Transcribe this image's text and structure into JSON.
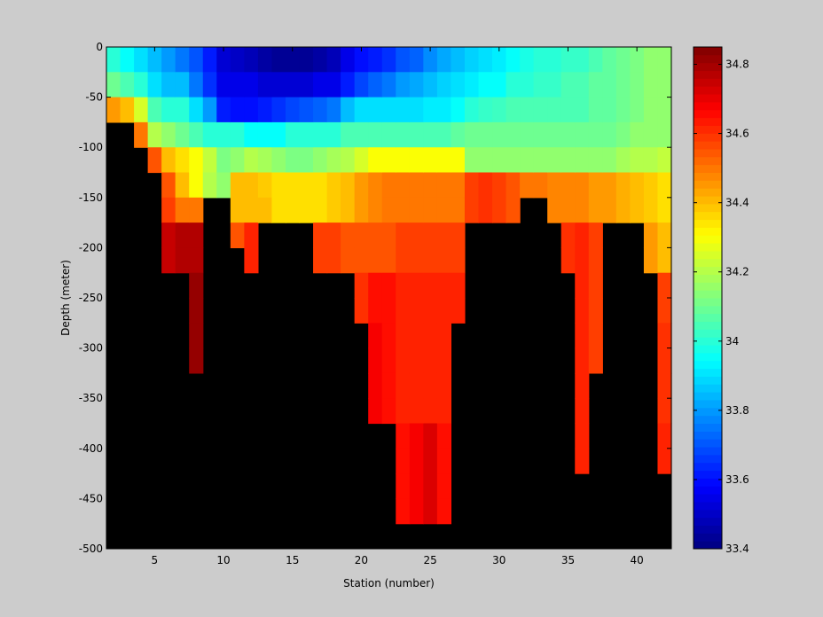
{
  "chart_data": {
    "type": "heatmap",
    "title": "",
    "xlabel": "Station (number)",
    "ylabel": "Depth (meter)",
    "xlim": [
      1.5,
      42.5
    ],
    "ylim": [
      -500,
      0
    ],
    "xticks": [
      5,
      10,
      15,
      20,
      25,
      30,
      35,
      40
    ],
    "yticks": [
      0,
      -50,
      -100,
      -150,
      -200,
      -250,
      -300,
      -350,
      -400,
      -450,
      -500
    ],
    "background_color": "#000000",
    "colorbar": {
      "range": [
        33.4,
        34.85
      ],
      "ticks": [
        33.4,
        33.6,
        33.8,
        34,
        34.2,
        34.4,
        34.6,
        34.8
      ],
      "colormap": "jet"
    },
    "depth_levels": [
      0,
      -25,
      -50,
      -75,
      -100,
      -125,
      -150,
      -175,
      -200,
      -225,
      -250,
      -275,
      -300,
      -325,
      -350,
      -375,
      -400,
      -425,
      -450,
      -475,
      -500
    ],
    "stations": [
      2,
      3,
      4,
      5,
      6,
      7,
      8,
      9,
      10,
      11,
      12,
      13,
      14,
      15,
      16,
      17,
      18,
      19,
      20,
      21,
      22,
      23,
      24,
      25,
      26,
      27,
      28,
      29,
      30,
      31,
      32,
      33,
      34,
      35,
      36,
      37,
      38,
      39,
      40,
      41,
      42
    ],
    "values": [
      [
        34.0,
        34.1,
        34.45,
        null,
        null,
        null,
        null,
        null,
        null,
        null,
        null,
        null,
        null,
        null,
        null,
        null,
        null,
        null,
        null,
        null
      ],
      [
        33.95,
        34.05,
        34.4,
        null,
        null,
        null,
        null,
        null,
        null,
        null,
        null,
        null,
        null,
        null,
        null,
        null,
        null,
        null,
        null,
        null
      ],
      [
        33.9,
        34.0,
        34.25,
        34.5,
        null,
        null,
        null,
        null,
        null,
        null,
        null,
        null,
        null,
        null,
        null,
        null,
        null,
        null,
        null,
        null
      ],
      [
        33.85,
        33.9,
        34.05,
        34.2,
        34.55,
        null,
        null,
        null,
        null,
        null,
        null,
        null,
        null,
        null,
        null,
        null,
        null,
        null,
        null,
        null
      ],
      [
        33.8,
        33.85,
        34.0,
        34.15,
        34.4,
        34.55,
        34.58,
        34.75,
        34.75,
        null,
        null,
        null,
        null,
        null,
        null,
        null,
        null,
        null,
        null,
        null
      ],
      [
        33.75,
        33.85,
        34.0,
        34.1,
        34.35,
        34.4,
        34.5,
        34.78,
        34.78,
        null,
        null,
        null,
        null,
        null,
        null,
        null,
        null,
        null,
        null,
        null
      ],
      [
        33.7,
        33.75,
        33.9,
        34.05,
        34.3,
        34.3,
        34.5,
        34.78,
        34.78,
        34.82,
        34.82,
        34.82,
        34.82,
        null,
        null,
        null,
        null,
        null,
        null,
        null
      ],
      [
        33.62,
        33.65,
        33.8,
        34.0,
        34.22,
        34.2,
        null,
        null,
        null,
        null,
        null,
        null,
        null,
        null,
        null,
        null,
        null,
        null,
        null,
        null
      ],
      [
        33.52,
        33.55,
        33.62,
        34.0,
        34.12,
        34.15,
        null,
        null,
        null,
        null,
        null,
        null,
        null,
        null,
        null,
        null,
        null,
        null,
        null,
        null
      ],
      [
        33.5,
        33.55,
        33.6,
        34.0,
        34.15,
        34.4,
        34.4,
        34.55,
        null,
        null,
        null,
        null,
        null,
        null,
        null,
        null,
        null,
        null,
        null,
        null
      ],
      [
        33.48,
        33.55,
        33.6,
        33.95,
        34.2,
        34.4,
        34.4,
        34.62,
        34.62,
        null,
        null,
        null,
        null,
        null,
        null,
        null,
        null,
        null,
        null,
        null
      ],
      [
        33.45,
        33.52,
        33.62,
        33.95,
        34.18,
        34.38,
        34.4,
        null,
        null,
        null,
        null,
        null,
        null,
        null,
        null,
        null,
        null,
        null,
        null,
        null
      ],
      [
        33.43,
        33.52,
        33.65,
        33.95,
        34.15,
        34.35,
        34.35,
        null,
        null,
        null,
        null,
        null,
        null,
        null,
        null,
        null,
        null,
        null,
        null,
        null
      ],
      [
        33.43,
        33.52,
        33.68,
        34.0,
        34.12,
        34.35,
        34.35,
        null,
        null,
        null,
        null,
        null,
        null,
        null,
        null,
        null,
        null,
        null,
        null,
        null
      ],
      [
        33.43,
        33.52,
        33.7,
        34.0,
        34.12,
        34.35,
        34.35,
        null,
        null,
        null,
        null,
        null,
        null,
        null,
        null,
        null,
        null,
        null,
        null,
        null
      ],
      [
        33.45,
        33.55,
        33.72,
        34.0,
        34.15,
        34.35,
        34.35,
        34.58,
        34.58,
        null,
        null,
        null,
        null,
        null,
        null,
        null,
        null,
        null,
        null,
        null
      ],
      [
        33.48,
        33.55,
        33.75,
        34.0,
        34.18,
        34.38,
        34.38,
        34.58,
        34.58,
        null,
        null,
        null,
        null,
        null,
        null,
        null,
        null,
        null,
        null,
        null
      ],
      [
        33.55,
        33.62,
        33.85,
        34.05,
        34.2,
        34.4,
        34.4,
        34.55,
        34.55,
        null,
        null,
        null,
        null,
        null,
        null,
        null,
        null,
        null,
        null,
        null
      ],
      [
        33.6,
        33.68,
        33.9,
        34.05,
        34.25,
        34.45,
        34.45,
        34.55,
        34.55,
        34.6,
        34.6,
        null,
        null,
        null,
        null,
        null,
        null,
        null,
        null,
        null
      ],
      [
        33.62,
        33.72,
        33.9,
        34.05,
        34.3,
        34.48,
        34.48,
        34.55,
        34.55,
        34.65,
        34.65,
        34.68,
        34.68,
        34.68,
        34.68,
        null,
        null,
        null,
        null,
        null
      ],
      [
        33.65,
        33.75,
        33.9,
        34.05,
        34.3,
        34.5,
        34.5,
        34.55,
        34.55,
        34.65,
        34.65,
        34.65,
        34.65,
        34.65,
        34.65,
        null,
        null,
        null,
        null,
        null
      ],
      [
        33.7,
        33.8,
        33.9,
        34.05,
        34.3,
        34.5,
        34.5,
        34.58,
        34.58,
        34.62,
        34.62,
        34.62,
        34.62,
        34.62,
        34.62,
        34.65,
        34.65,
        34.65,
        34.65,
        null
      ],
      [
        33.72,
        33.82,
        33.9,
        34.05,
        34.3,
        34.5,
        34.5,
        34.58,
        34.58,
        34.62,
        34.62,
        34.62,
        34.62,
        34.62,
        34.62,
        34.68,
        34.68,
        34.68,
        34.68,
        null
      ],
      [
        33.78,
        33.85,
        33.92,
        34.05,
        34.3,
        34.5,
        34.5,
        34.58,
        34.58,
        34.62,
        34.62,
        34.62,
        34.62,
        34.62,
        34.62,
        34.72,
        34.72,
        34.72,
        34.72,
        null
      ],
      [
        33.82,
        33.88,
        33.92,
        34.05,
        34.3,
        34.5,
        34.5,
        34.58,
        34.58,
        34.62,
        34.62,
        34.62,
        34.62,
        34.62,
        34.62,
        34.65,
        34.65,
        34.65,
        34.65,
        null
      ],
      [
        33.85,
        33.9,
        33.95,
        34.08,
        34.3,
        34.5,
        34.5,
        34.58,
        34.58,
        34.62,
        34.62,
        null,
        null,
        null,
        null,
        null,
        null,
        null,
        null,
        null
      ],
      [
        33.88,
        33.92,
        34.0,
        34.1,
        34.15,
        34.58,
        34.58,
        null,
        null,
        null,
        null,
        null,
        null,
        null,
        null,
        null,
        null,
        null,
        null,
        null
      ],
      [
        33.9,
        33.95,
        34.02,
        34.1,
        34.15,
        34.6,
        34.6,
        null,
        null,
        null,
        null,
        null,
        null,
        null,
        null,
        null,
        null,
        null,
        null,
        null
      ],
      [
        33.92,
        33.95,
        34.03,
        34.1,
        34.15,
        34.58,
        34.58,
        null,
        null,
        null,
        null,
        null,
        null,
        null,
        null,
        null,
        null,
        null,
        null,
        null
      ],
      [
        33.95,
        34.0,
        34.05,
        34.1,
        34.15,
        34.55,
        34.55,
        null,
        null,
        null,
        null,
        null,
        null,
        null,
        null,
        null,
        null,
        null,
        null,
        null
      ],
      [
        33.98,
        34.0,
        34.05,
        34.1,
        34.15,
        34.5,
        null,
        null,
        null,
        null,
        null,
        null,
        null,
        null,
        null,
        null,
        null,
        null,
        null,
        null
      ],
      [
        34.0,
        34.02,
        34.05,
        34.1,
        34.15,
        34.5,
        null,
        null,
        null,
        null,
        null,
        null,
        null,
        null,
        null,
        null,
        null,
        null,
        null,
        null
      ],
      [
        34.0,
        34.02,
        34.05,
        34.1,
        34.15,
        34.48,
        34.48,
        null,
        null,
        null,
        null,
        null,
        null,
        null,
        null,
        null,
        null,
        null,
        null,
        null
      ],
      [
        34.02,
        34.05,
        34.05,
        34.1,
        34.15,
        34.48,
        34.48,
        34.6,
        34.6,
        null,
        null,
        null,
        null,
        null,
        null,
        null,
        null,
        null,
        null,
        null
      ],
      [
        34.02,
        34.05,
        34.05,
        34.1,
        34.15,
        34.48,
        34.48,
        34.62,
        34.62,
        34.62,
        34.62,
        34.62,
        34.62,
        34.62,
        34.62,
        34.62,
        34.62,
        null,
        null,
        null
      ],
      [
        34.05,
        34.08,
        34.08,
        34.1,
        34.15,
        34.45,
        34.45,
        34.58,
        34.58,
        34.58,
        34.58,
        34.58,
        34.58,
        null,
        null,
        null,
        null,
        null,
        null,
        null
      ],
      [
        34.08,
        34.08,
        34.08,
        34.1,
        34.15,
        34.45,
        34.45,
        null,
        null,
        null,
        null,
        null,
        null,
        null,
        null,
        null,
        null,
        null,
        null,
        null
      ],
      [
        34.1,
        34.1,
        34.1,
        34.12,
        34.18,
        34.42,
        34.42,
        null,
        null,
        null,
        null,
        null,
        null,
        null,
        null,
        null,
        null,
        null,
        null,
        null
      ],
      [
        34.12,
        34.12,
        34.12,
        34.15,
        34.2,
        34.4,
        34.4,
        null,
        null,
        null,
        null,
        null,
        null,
        null,
        null,
        null,
        null,
        null,
        null,
        null
      ],
      [
        34.15,
        34.15,
        34.15,
        34.15,
        34.2,
        34.38,
        34.38,
        34.45,
        34.45,
        null,
        null,
        null,
        null,
        null,
        null,
        null,
        null,
        null,
        null,
        null
      ],
      [
        34.15,
        34.15,
        34.15,
        34.15,
        34.22,
        34.35,
        34.35,
        34.4,
        34.4,
        34.58,
        34.58,
        34.6,
        34.6,
        34.6,
        34.6,
        34.62,
        34.62,
        null,
        null,
        null
      ]
    ]
  }
}
